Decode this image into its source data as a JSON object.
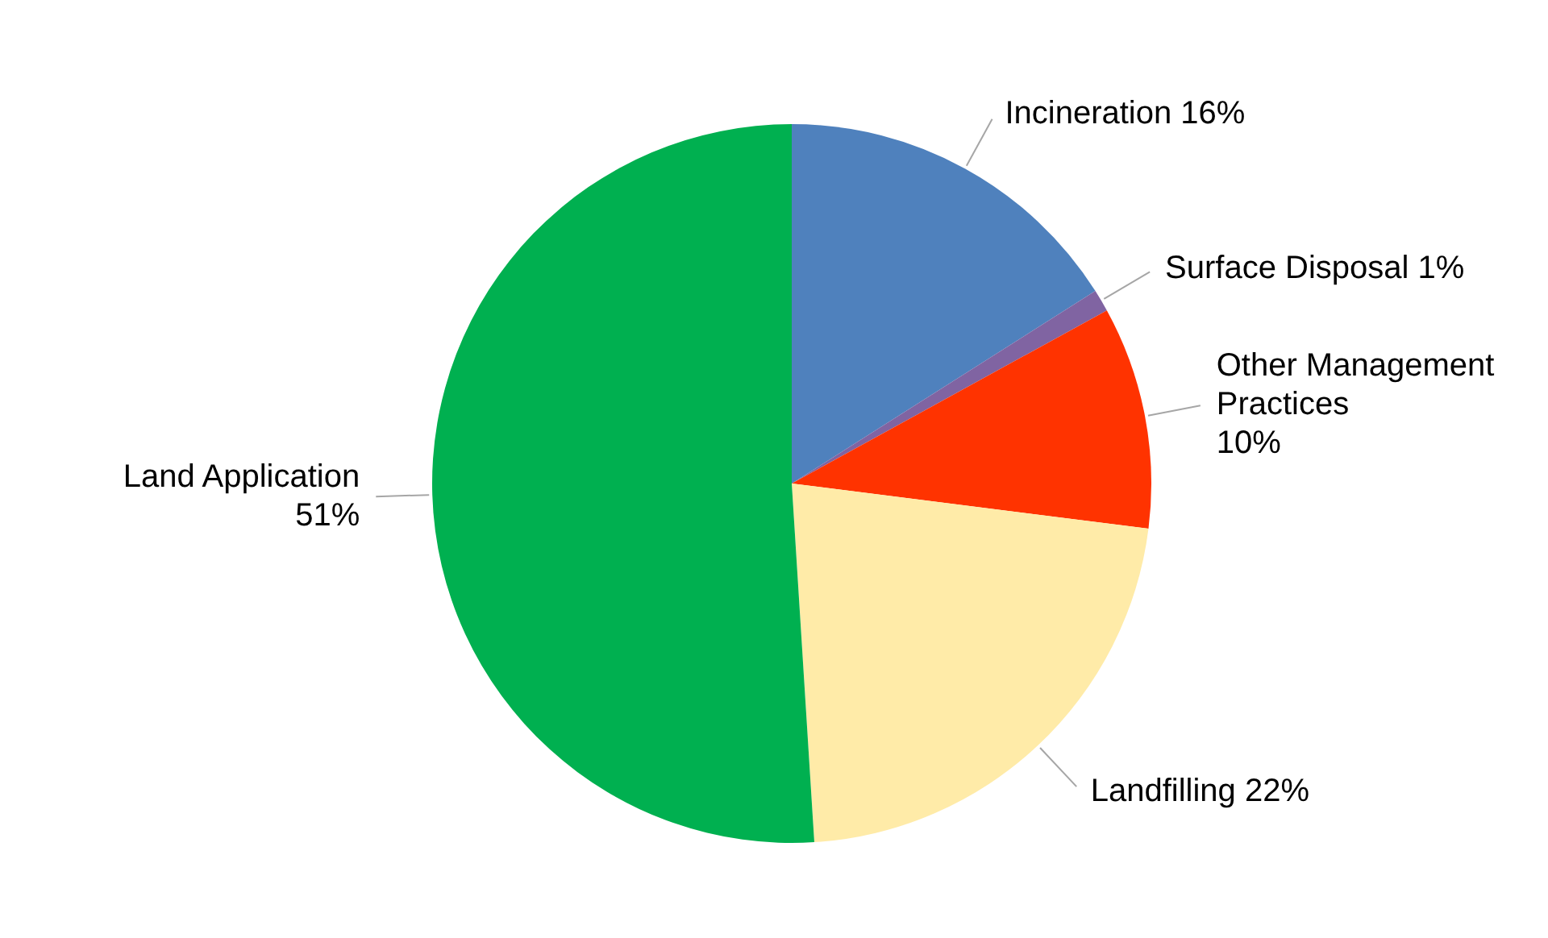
{
  "chart_data": {
    "type": "pie",
    "categories": [
      "Incineration",
      "Surface Disposal",
      "Other Management Practices",
      "Landfilling",
      "Land Application"
    ],
    "values": [
      16,
      1,
      10,
      22,
      51
    ],
    "value_labels": [
      "16%",
      "1%",
      "10%",
      "22%",
      "51%"
    ],
    "colors": [
      "#4f81bd",
      "#8064a2",
      "#ff3300",
      "#ffeba8",
      "#00b050"
    ]
  }
}
